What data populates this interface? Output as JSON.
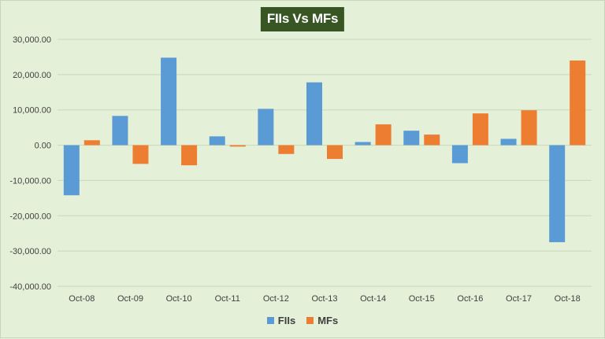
{
  "chart_data": {
    "type": "bar",
    "title": "FIIs Vs MFs",
    "categories": [
      "Oct-08",
      "Oct-09",
      "Oct-10",
      "Oct-11",
      "Oct-12",
      "Oct-13",
      "Oct-14",
      "Oct-15",
      "Oct-16",
      "Oct-17",
      "Oct-18"
    ],
    "series": [
      {
        "name": "FIIs",
        "color": "#5b9bd5",
        "values": [
          -14200,
          8300,
          24800,
          2500,
          10300,
          17800,
          900,
          4100,
          -5100,
          1800,
          -27500
        ]
      },
      {
        "name": "MFs",
        "color": "#ed7d31",
        "values": [
          1400,
          -5300,
          -5700,
          -400,
          -2500,
          -3900,
          5900,
          3000,
          9000,
          9900,
          24000
        ]
      }
    ],
    "ylim": [
      -40000,
      30000
    ],
    "yticks": [
      30000,
      20000,
      10000,
      0,
      -10000,
      -20000,
      -30000,
      -40000
    ],
    "ytick_labels": [
      "30,000.00",
      "20,000.00",
      "10,000.00",
      "0.00",
      "-10,000.00",
      "-20,000.00",
      "-30,000.00",
      "-40,000.00"
    ],
    "grid": true,
    "legend_position": "bottom",
    "gridline_color": "#c8d8b8"
  }
}
